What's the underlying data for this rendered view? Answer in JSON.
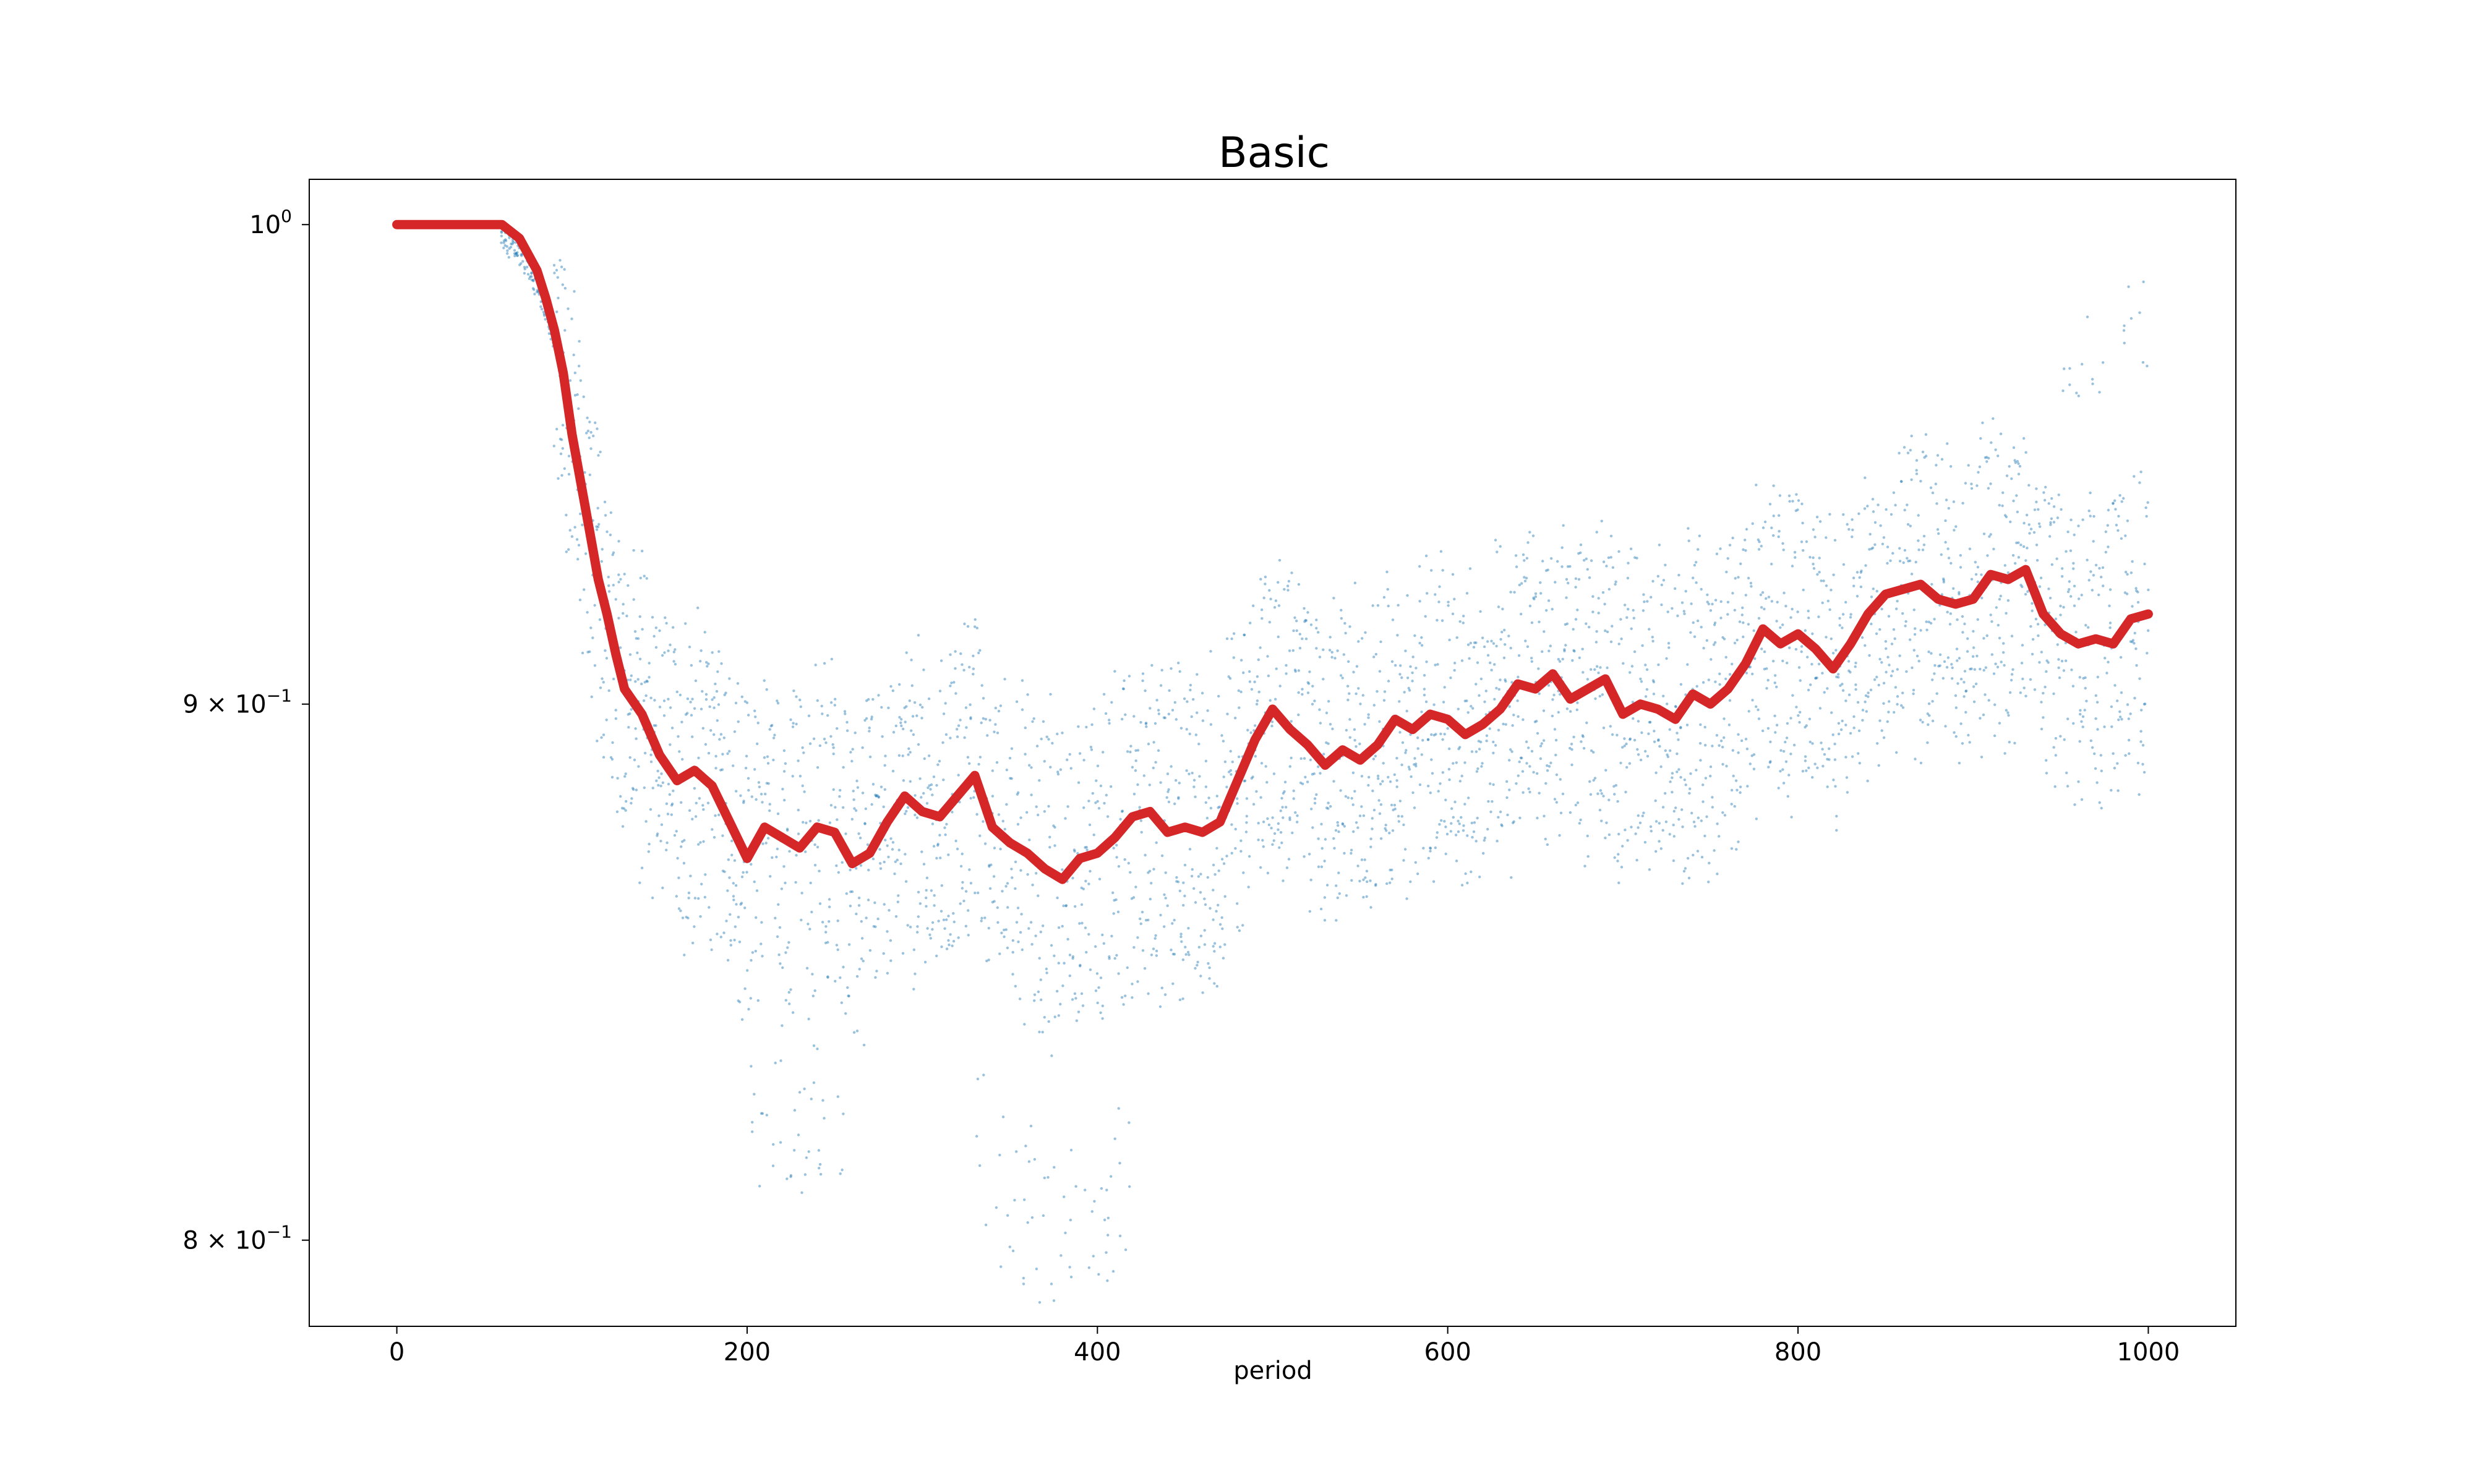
{
  "chart_data": {
    "type": "scatter",
    "title": "Basic",
    "xlabel": "period",
    "ylabel": "",
    "xlim": [
      -50,
      1050
    ],
    "ylim": [
      0.785,
      1.01
    ],
    "yscale": "log",
    "grid": false,
    "legend": "none",
    "x_ticks": [
      {
        "value": 0,
        "label": "0"
      },
      {
        "value": 200,
        "label": "200"
      },
      {
        "value": 400,
        "label": "400"
      },
      {
        "value": 600,
        "label": "600"
      },
      {
        "value": 800,
        "label": "800"
      },
      {
        "value": 1000,
        "label": "1000"
      }
    ],
    "y_ticks": [
      {
        "value": 1.0,
        "base": "10",
        "exp": "0"
      },
      {
        "value": 0.9,
        "base": "9 × 10",
        "exp": "−1"
      },
      {
        "value": 0.8,
        "base": "8 × 10",
        "exp": "−1"
      }
    ],
    "series": [
      {
        "style": "line",
        "color": "#d62728",
        "x": [
          0,
          20,
          40,
          60,
          70,
          80,
          85,
          90,
          95,
          100,
          105,
          110,
          115,
          120,
          125,
          130,
          140,
          150,
          160,
          170,
          180,
          190,
          200,
          210,
          220,
          230,
          240,
          250,
          260,
          270,
          280,
          290,
          300,
          310,
          320,
          330,
          340,
          350,
          360,
          370,
          380,
          390,
          400,
          410,
          420,
          430,
          440,
          450,
          460,
          470,
          480,
          490,
          500,
          510,
          520,
          530,
          540,
          550,
          560,
          570,
          580,
          590,
          600,
          610,
          620,
          630,
          640,
          650,
          660,
          670,
          680,
          690,
          700,
          710,
          720,
          730,
          740,
          750,
          760,
          770,
          780,
          790,
          800,
          810,
          820,
          830,
          840,
          850,
          860,
          870,
          880,
          890,
          900,
          910,
          920,
          930,
          940,
          950,
          960,
          970,
          980,
          990,
          1000
        ],
        "y": [
          1.0,
          1.0,
          1.0,
          1.0,
          0.997,
          0.99,
          0.984,
          0.977,
          0.968,
          0.955,
          0.945,
          0.935,
          0.925,
          0.918,
          0.91,
          0.903,
          0.898,
          0.89,
          0.885,
          0.887,
          0.884,
          0.877,
          0.87,
          0.876,
          0.874,
          0.872,
          0.876,
          0.875,
          0.869,
          0.871,
          0.877,
          0.882,
          0.879,
          0.878,
          0.882,
          0.886,
          0.876,
          0.873,
          0.871,
          0.868,
          0.866,
          0.87,
          0.871,
          0.874,
          0.878,
          0.879,
          0.875,
          0.876,
          0.875,
          0.877,
          0.885,
          0.893,
          0.899,
          0.895,
          0.892,
          0.888,
          0.891,
          0.889,
          0.892,
          0.897,
          0.895,
          0.898,
          0.897,
          0.894,
          0.896,
          0.899,
          0.904,
          0.903,
          0.906,
          0.901,
          0.903,
          0.905,
          0.898,
          0.9,
          0.899,
          0.897,
          0.902,
          0.9,
          0.903,
          0.908,
          0.915,
          0.912,
          0.914,
          0.911,
          0.907,
          0.912,
          0.918,
          0.922,
          0.923,
          0.924,
          0.921,
          0.92,
          0.921,
          0.926,
          0.925,
          0.927,
          0.918,
          0.914,
          0.912,
          0.913,
          0.912,
          0.917,
          0.918
        ]
      }
    ],
    "scatter_points": {
      "color": "#1f77b4",
      "count_note": "",
      "x_range": [
        0,
        1000
      ]
    }
  }
}
